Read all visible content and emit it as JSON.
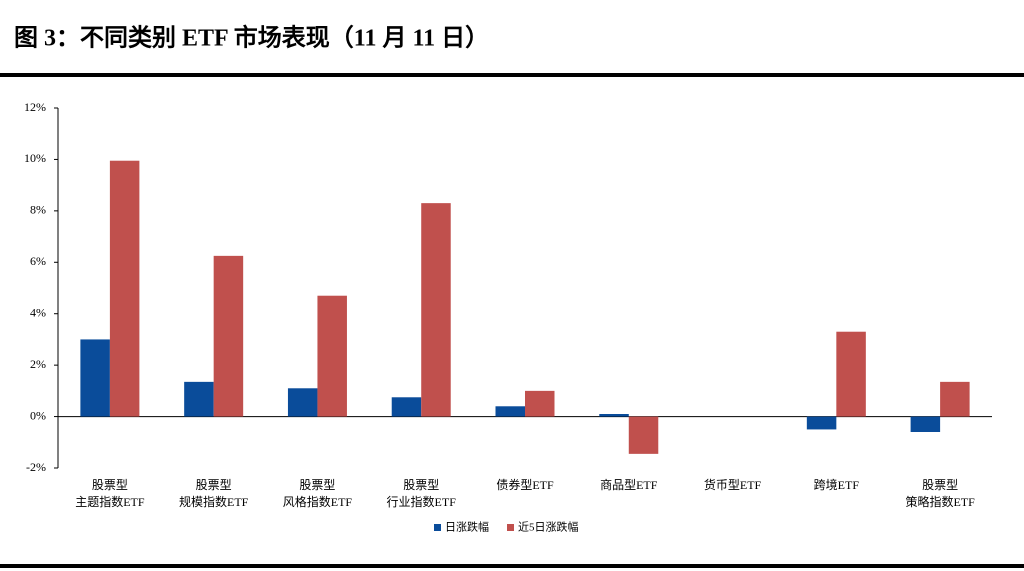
{
  "chart_data": {
    "type": "bar",
    "title": "图 3：不同类别 ETF 市场表现（11 月 11 日）",
    "categories": [
      "股票型\n主题指数ETF",
      "股票型\n规模指数ETF",
      "股票型\n风格指数ETF",
      "股票型\n行业指数ETF",
      "债券型ETF",
      "商品型ETF",
      "货币型ETF",
      "跨境ETF",
      "股票型\n策略指数ETF"
    ],
    "series": [
      {
        "name": "日涨跌幅",
        "color": "#0a4c9a",
        "values": [
          3.0,
          1.35,
          1.1,
          0.75,
          0.4,
          0.1,
          0,
          -0.5,
          -0.6
        ]
      },
      {
        "name": "近5日涨跌幅",
        "color": "#c0504d",
        "values": [
          9.95,
          6.25,
          4.7,
          8.3,
          1.0,
          -1.45,
          0,
          3.3,
          1.35
        ]
      }
    ],
    "ylim": [
      -2,
      12
    ],
    "yticks": [
      {
        "value": -2,
        "label": "-2%"
      },
      {
        "value": 0,
        "label": "0%"
      },
      {
        "value": 2,
        "label": "2%"
      },
      {
        "value": 4,
        "label": "4%"
      },
      {
        "value": 6,
        "label": "6%"
      },
      {
        "value": 8,
        "label": "8%"
      },
      {
        "value": 10,
        "label": "10%"
      },
      {
        "value": 12,
        "label": "12%"
      }
    ]
  }
}
